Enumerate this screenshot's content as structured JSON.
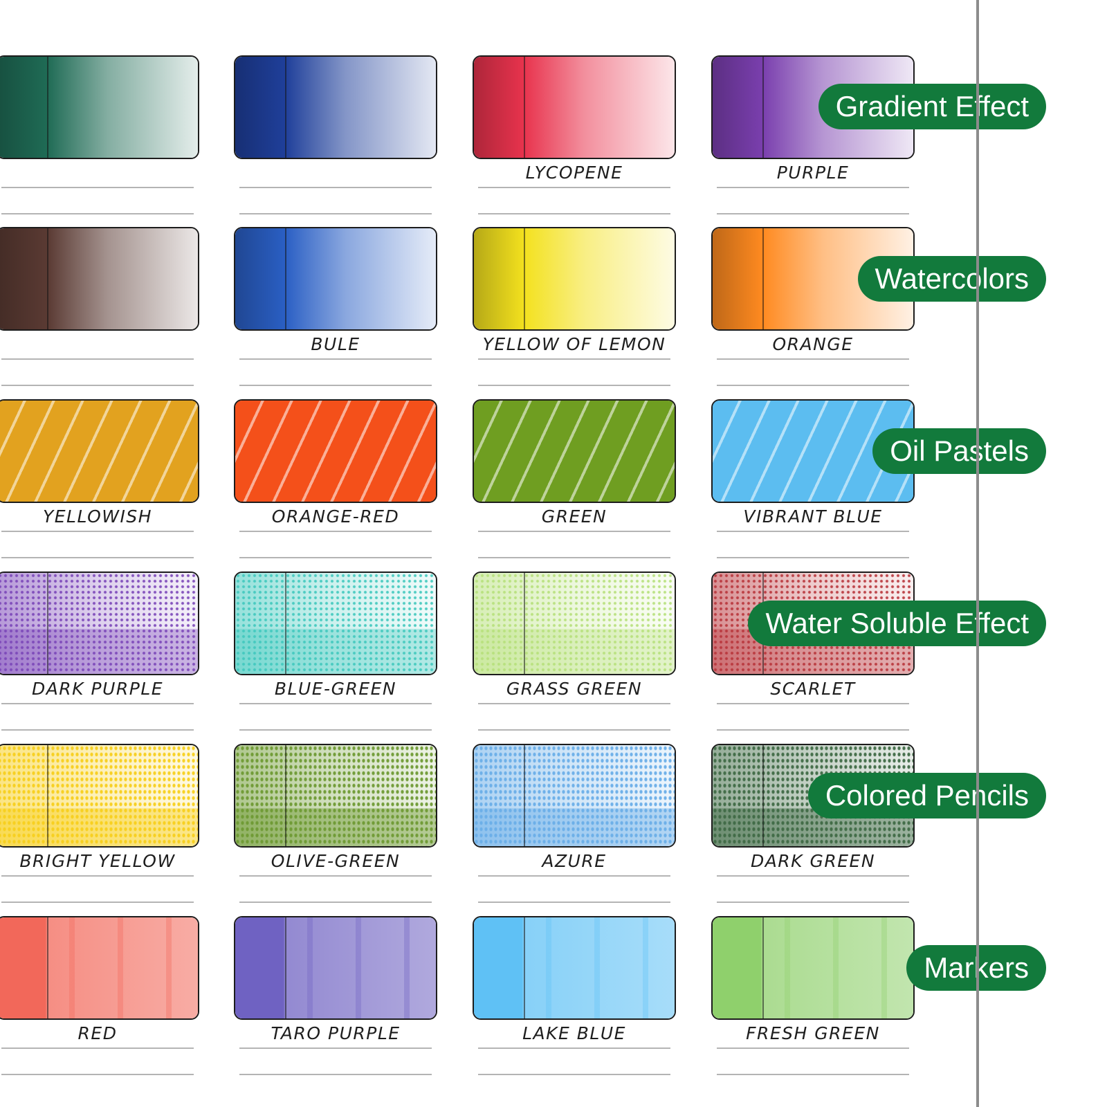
{
  "swatches": [
    {
      "label": "",
      "color": "#1f6b55",
      "style": "gradient"
    },
    {
      "label": "",
      "color": "#1f3f9a",
      "style": "gradient"
    },
    {
      "label": "LYCOPENE",
      "color": "#e8334d",
      "style": "gradient"
    },
    {
      "label": "PURPLE",
      "color": "#7a3fae",
      "style": "gradient"
    },
    {
      "label": "",
      "color": "#5a3a33",
      "style": "gradient"
    },
    {
      "label": "BULE",
      "color": "#2a5fc4",
      "style": "gradient"
    },
    {
      "label": "YELLOW OF LEMON",
      "color": "#f3e11e",
      "style": "gradient"
    },
    {
      "label": "ORANGE",
      "color": "#ff8a20",
      "style": "gradient"
    },
    {
      "label": "YELLOWISH",
      "color": "#e2a21f",
      "style": "pastel"
    },
    {
      "label": "ORANGE-RED",
      "color": "#f4501a",
      "style": "pastel"
    },
    {
      "label": "GREEN",
      "color": "#6f9e21",
      "style": "pastel"
    },
    {
      "label": "VIBRANT BLUE",
      "color": "#5cbdf0",
      "style": "pastel"
    },
    {
      "label": "DARK PURPLE",
      "color": "#7a45b8",
      "style": "soluble"
    },
    {
      "label": "BLUE-GREEN",
      "color": "#3fc8bd",
      "style": "soluble"
    },
    {
      "label": "GRASS GREEN",
      "color": "#b6e07a",
      "style": "soluble"
    },
    {
      "label": "SCARLET",
      "color": "#b8343a",
      "style": "soluble"
    },
    {
      "label": "BRIGHT YELLOW",
      "color": "#f7cf1c",
      "style": "pencil"
    },
    {
      "label": "OLIVE-GREEN",
      "color": "#6e9a33",
      "style": "pencil"
    },
    {
      "label": "AZURE",
      "color": "#6aaee8",
      "style": "pencil"
    },
    {
      "label": "DARK GREEN",
      "color": "#3f6a45",
      "style": "pencil"
    },
    {
      "label": "RED",
      "color": "#f2685a",
      "style": "marker"
    },
    {
      "label": "TARO PURPLE",
      "color": "#6f62c2",
      "style": "marker"
    },
    {
      "label": "LAKE BLUE",
      "color": "#5fc1f5",
      "style": "marker"
    },
    {
      "label": "FRESH GREEN",
      "color": "#8fd06c",
      "style": "marker"
    }
  ],
  "badges": [
    {
      "label": "Gradient Effect"
    },
    {
      "label": "Watercolors"
    },
    {
      "label": "Oil Pastels"
    },
    {
      "label": "Water Soluble Effect"
    },
    {
      "label": "Colored Pencils"
    },
    {
      "label": "Markers"
    }
  ],
  "colors": {
    "badge_bg": "#127a3c",
    "badge_text": "#ffffff",
    "rule": "#b4b4b4",
    "frame_line": "#8c8c8c"
  }
}
